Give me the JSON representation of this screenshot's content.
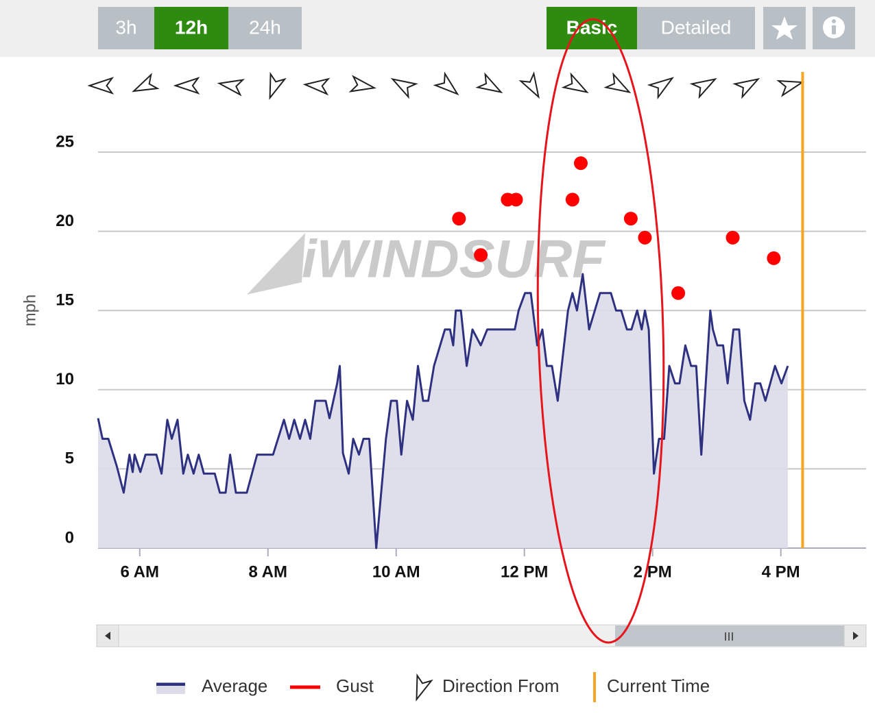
{
  "toolbar": {
    "ranges": [
      "3h",
      "12h",
      "24h"
    ],
    "active_range": 1,
    "views": [
      "Basic",
      "Detailed"
    ],
    "active_view": 0
  },
  "chart_data": {
    "type": "line",
    "ylabel": "mph",
    "watermark": "iWINDSURF",
    "grid": true,
    "xlim": [
      5.35,
      17.33
    ],
    "xticks": [
      {
        "value": 6,
        "label": "6 AM"
      },
      {
        "value": 8,
        "label": "8 AM"
      },
      {
        "value": 10,
        "label": "10 AM"
      },
      {
        "value": 12,
        "label": "12 PM"
      },
      {
        "value": 14,
        "label": "2 PM"
      },
      {
        "value": 16,
        "label": "4 PM"
      }
    ],
    "ylim": [
      0,
      25
    ],
    "yticks": [
      0,
      5,
      10,
      15,
      20,
      25
    ],
    "series": [
      {
        "name": "Average",
        "color": "#2e3080",
        "x": [
          5.35,
          5.42,
          5.51,
          5.64,
          5.75,
          5.84,
          5.89,
          5.92,
          6.01,
          6.09,
          6.26,
          6.34,
          6.43,
          6.5,
          6.59,
          6.68,
          6.75,
          6.84,
          6.92,
          7.0,
          7.17,
          7.25,
          7.34,
          7.41,
          7.5,
          7.67,
          7.83,
          8.08,
          8.25,
          8.33,
          8.41,
          8.5,
          8.58,
          8.66,
          8.74,
          8.9,
          8.96,
          9.08,
          9.12,
          9.17,
          9.26,
          9.33,
          9.42,
          9.49,
          9.58,
          9.69,
          9.84,
          9.92,
          10.01,
          10.08,
          10.17,
          10.26,
          10.34,
          10.42,
          10.5,
          10.59,
          10.76,
          10.84,
          10.89,
          10.93,
          11.01,
          11.1,
          11.19,
          11.32,
          11.42,
          11.85,
          11.91,
          12.01,
          12.1,
          12.2,
          12.28,
          12.35,
          12.43,
          12.52,
          12.68,
          12.75,
          12.82,
          12.91,
          13.01,
          13.18,
          13.35,
          13.43,
          13.51,
          13.6,
          13.67,
          13.76,
          13.83,
          13.88,
          13.94,
          14.02,
          14.1,
          14.18,
          14.26,
          14.35,
          14.42,
          14.51,
          14.6,
          14.68,
          14.76,
          14.9,
          14.94,
          15.01,
          15.1,
          15.17,
          15.26,
          15.35,
          15.43,
          15.52,
          15.6,
          15.68,
          15.76,
          15.91,
          16.01,
          16.11
        ],
        "values": [
          8.2,
          6.9,
          6.9,
          5.2,
          3.5,
          5.9,
          4.8,
          5.9,
          4.8,
          5.9,
          5.9,
          4.7,
          8.1,
          6.9,
          8.1,
          4.7,
          5.9,
          4.7,
          5.9,
          4.7,
          4.7,
          3.5,
          3.5,
          5.9,
          3.5,
          3.5,
          5.9,
          5.9,
          8.1,
          6.9,
          8.1,
          6.9,
          8.1,
          6.9,
          9.3,
          9.3,
          8.2,
          10.4,
          11.5,
          6.0,
          4.7,
          6.9,
          5.9,
          6.9,
          6.9,
          0,
          6.9,
          9.3,
          9.3,
          5.9,
          9.3,
          8.1,
          11.5,
          9.3,
          9.3,
          11.5,
          13.8,
          13.8,
          12.8,
          15.0,
          15.0,
          11.5,
          13.8,
          12.8,
          13.8,
          13.8,
          15.0,
          16.1,
          16.1,
          12.8,
          13.8,
          11.5,
          11.5,
          9.3,
          15.0,
          16.1,
          15.0,
          17.3,
          13.8,
          16.1,
          16.1,
          15.0,
          15.0,
          13.8,
          13.8,
          15.0,
          13.8,
          15.0,
          13.8,
          4.7,
          6.9,
          6.9,
          11.5,
          10.4,
          10.4,
          12.8,
          11.5,
          11.5,
          5.9,
          15.0,
          13.8,
          12.8,
          12.8,
          10.4,
          13.8,
          13.8,
          9.3,
          8.1,
          10.4,
          10.4,
          9.3,
          11.5,
          10.4,
          11.5
        ]
      },
      {
        "name": "Gust",
        "color": "#ff0000",
        "x": [
          10.98,
          11.32,
          11.74,
          11.87,
          12.75,
          12.88,
          13.66,
          13.88,
          14.4,
          15.25,
          15.89
        ],
        "values": [
          20.8,
          18.5,
          22.0,
          22.0,
          22.0,
          24.3,
          20.8,
          19.6,
          16.1,
          19.6,
          18.3
        ]
      }
    ],
    "direction": {
      "name": "Direction From",
      "x": [
        5.42,
        6.09,
        6.76,
        7.44,
        8.1,
        8.78,
        9.46,
        10.12,
        10.8,
        11.46,
        12.12,
        12.8,
        13.46,
        14.14,
        14.8,
        15.47,
        16.14
      ],
      "values": [
        270,
        245,
        270,
        280,
        200,
        275,
        100,
        300,
        130,
        120,
        150,
        120,
        120,
        55,
        60,
        60,
        75
      ]
    },
    "current_time": {
      "name": "Current Time",
      "x": 16.34,
      "color": "#f5a623"
    }
  }
}
